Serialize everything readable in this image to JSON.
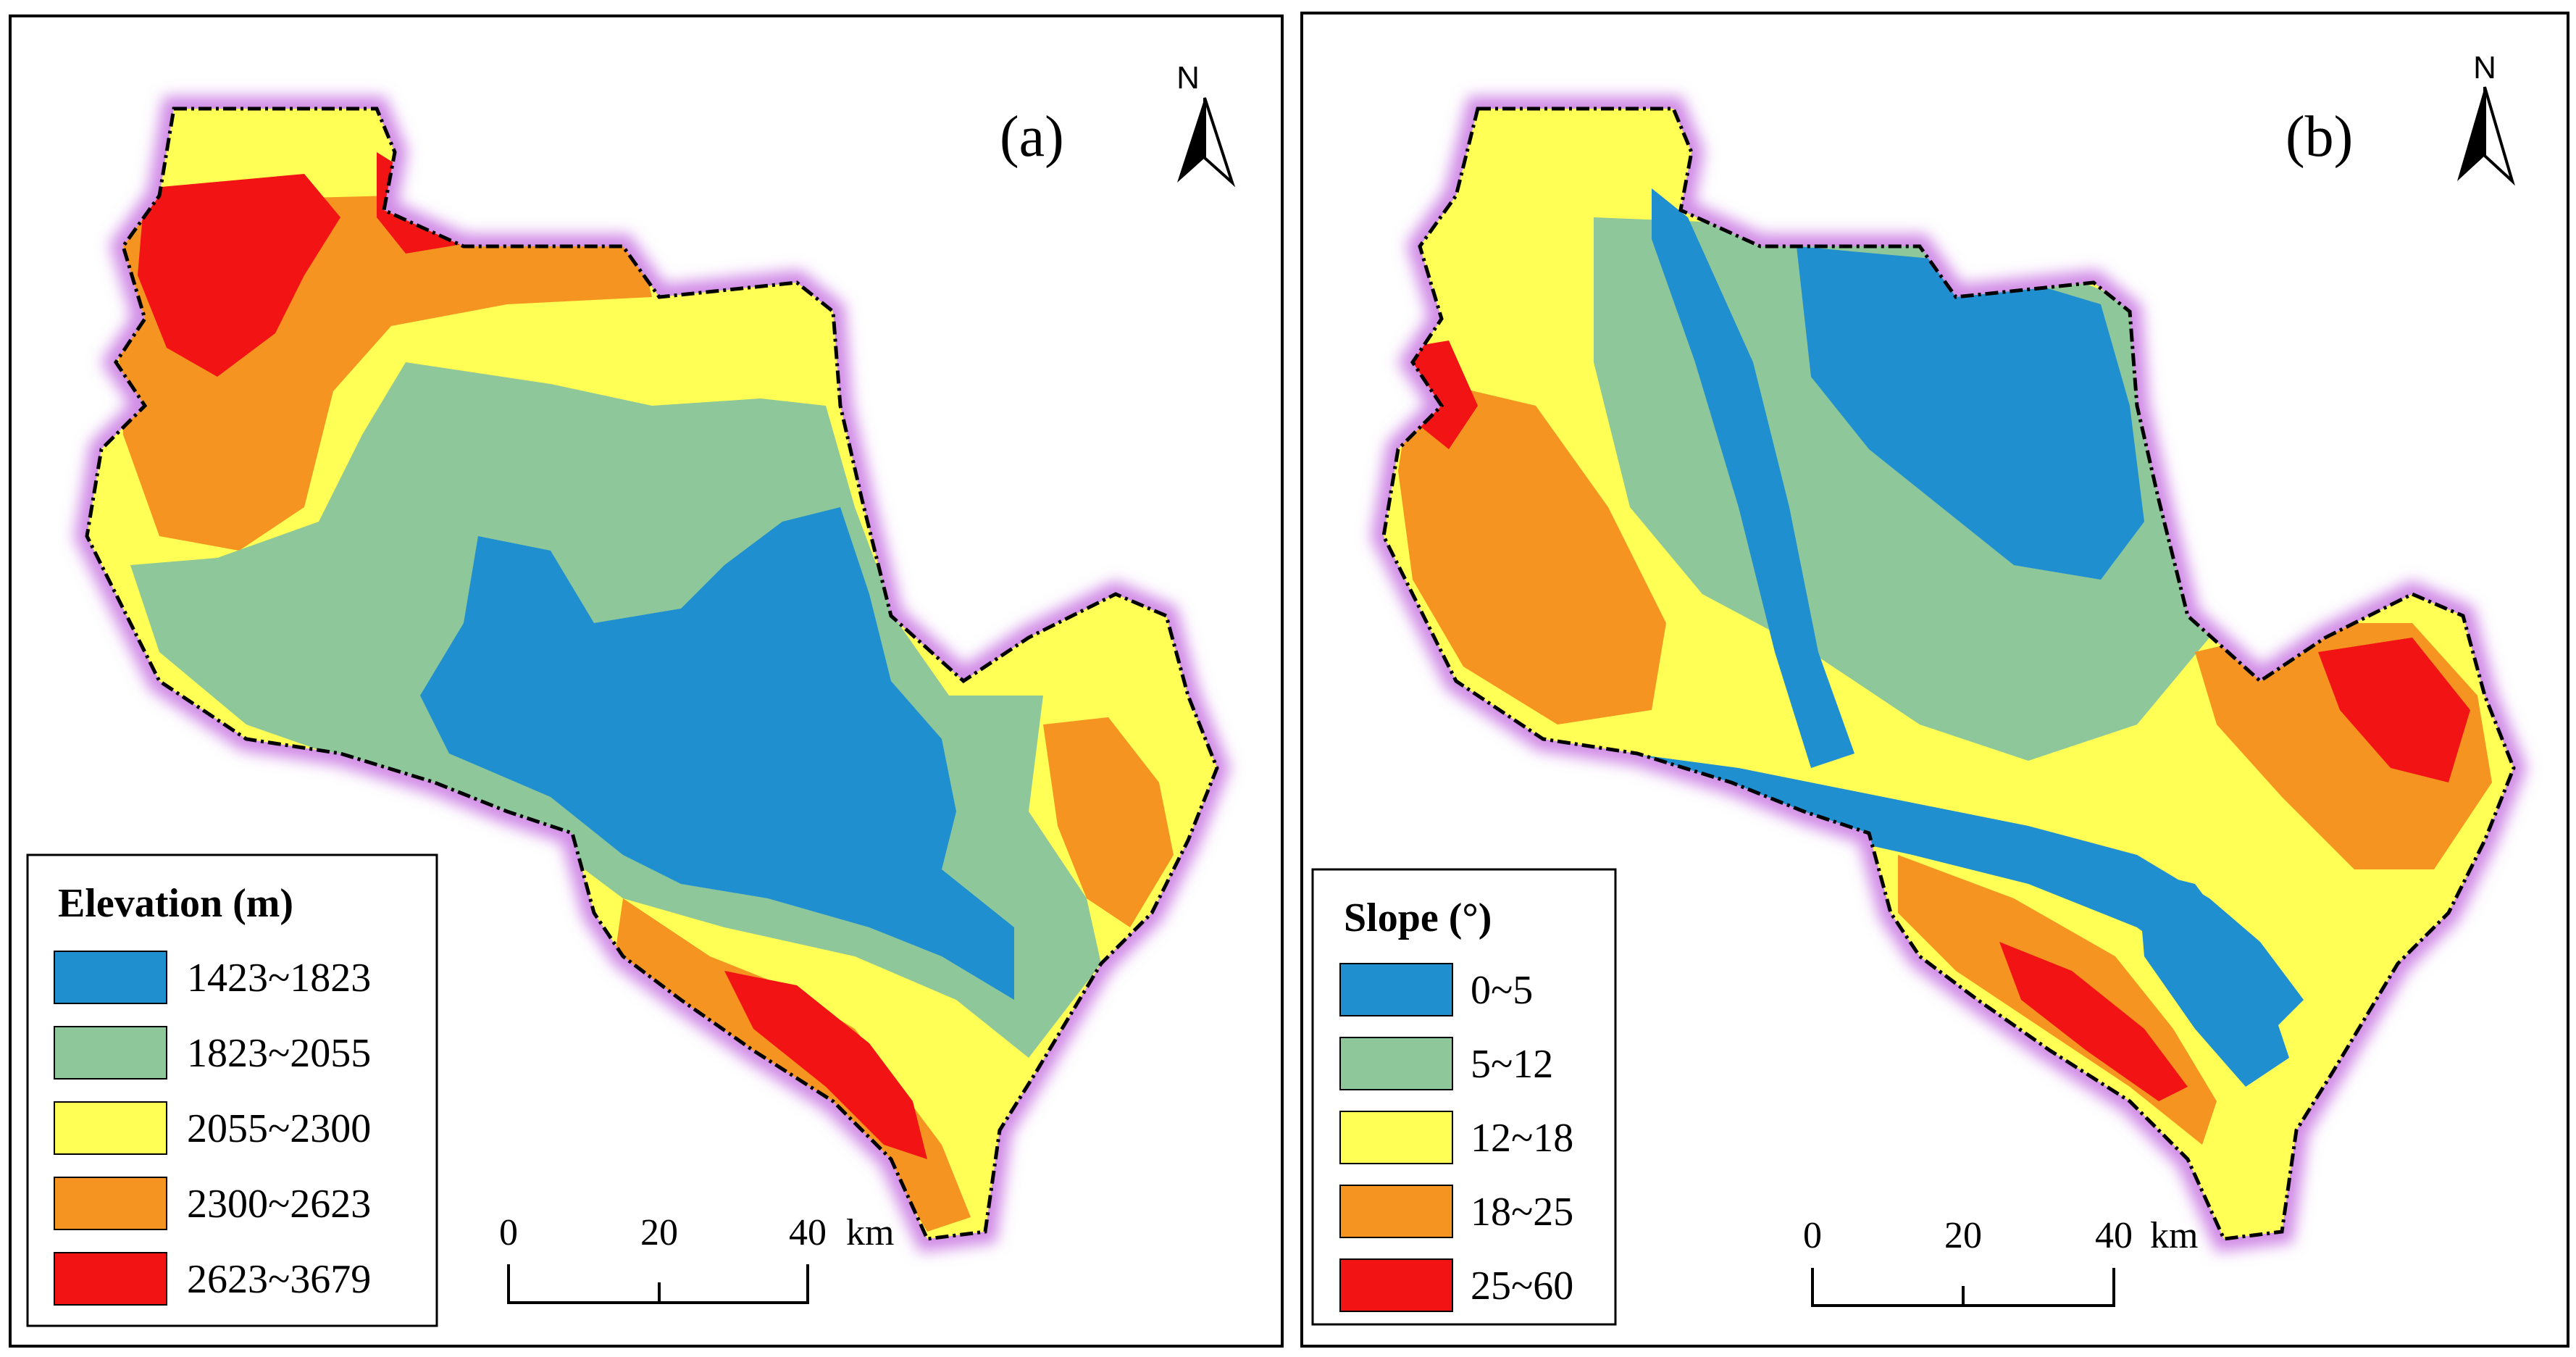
{
  "colors": {
    "c1": "#1f8fd0",
    "c2": "#8dc79a",
    "c3": "#ffff55",
    "c4": "#f59421",
    "c5": "#f21414",
    "boundary_glow": "#d08ae6"
  },
  "panel_a": {
    "label": "(a)",
    "north": "N",
    "legend_title": "Elevation (m)",
    "classes": [
      "1423~1823",
      "1823~2055",
      "2055~2300",
      "2300~2623",
      "2623~3679"
    ],
    "scale": {
      "t0": "0",
      "t1": "20",
      "t2": "40",
      "unit": "km"
    }
  },
  "panel_b": {
    "label": "(b)",
    "north": "N",
    "legend_title": "Slope (°)",
    "classes": [
      "0~5",
      "5~12",
      "12~18",
      "18~25",
      "25~60"
    ],
    "scale": {
      "t0": "0",
      "t1": "20",
      "t2": "40",
      "unit": "km"
    }
  }
}
